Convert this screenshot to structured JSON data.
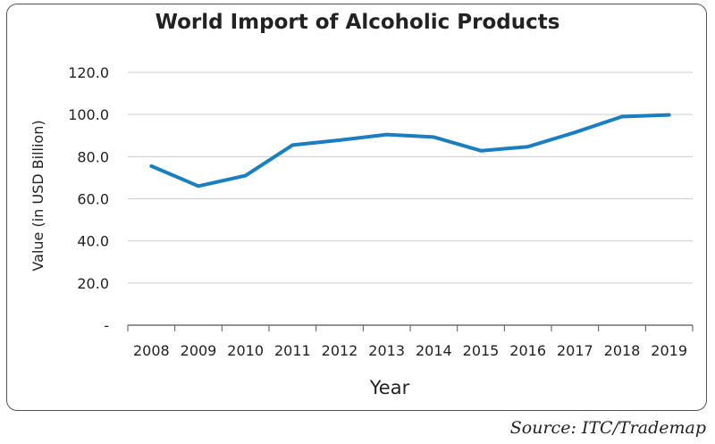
{
  "chart_data": {
    "type": "line",
    "title": "World Import of Alcoholic Products",
    "xlabel": "Year",
    "ylabel": "Value (in USD Billion)",
    "categories": [
      "2008",
      "2009",
      "2010",
      "2011",
      "2012",
      "2013",
      "2014",
      "2015",
      "2016",
      "2017",
      "2018",
      "2019"
    ],
    "series": [
      {
        "values": [
          75.5,
          66.0,
          71.0,
          85.5,
          87.8,
          90.5,
          89.3,
          82.8,
          84.7,
          91.5,
          99.0,
          99.8
        ],
        "color": "#1a7fc0"
      }
    ],
    "ylim": [
      0,
      120
    ],
    "yticks": [
      0,
      20,
      40,
      60,
      80,
      100,
      120
    ],
    "ytick_labels": [
      "-",
      "20.0",
      "40.0",
      "60.0",
      "80.0",
      "100.0",
      "120.0"
    ],
    "grid": "horizontal",
    "legend": "none"
  },
  "source": "Source: ITC/Trademap",
  "colors": {
    "gridline": "#cccccc",
    "axis": "#555555",
    "frame": "#555555"
  }
}
